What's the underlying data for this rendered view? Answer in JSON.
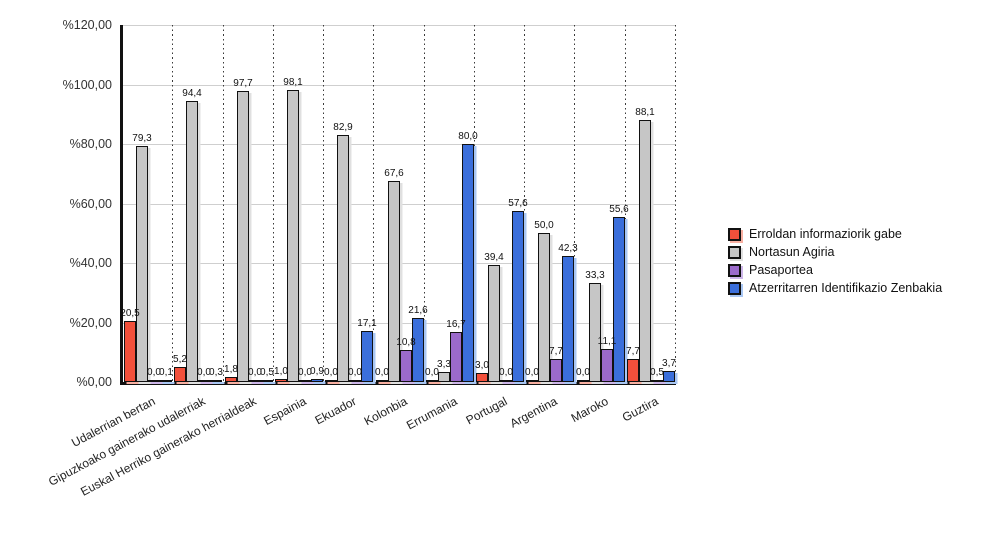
{
  "chart_data": {
    "type": "bar",
    "title": "",
    "categories": [
      "Udalerrian bertan",
      "Gipuzkoako gainerako udalerriak",
      "Euskal Herriko gainerako herrialdeak",
      "Espainia",
      "Ekuador",
      "Kolonbia",
      "Errumania",
      "Portugal",
      "Argentina",
      "Maroko",
      "Guztira"
    ],
    "series": [
      {
        "name": "Erroldan informaziorik gabe",
        "color": "#F2503B",
        "shadow_color": "#F8B0A2",
        "values": [
          20.5,
          5.2,
          1.8,
          1.0,
          0.0,
          0.0,
          0.0,
          3.0,
          0.0,
          0.0,
          7.7
        ],
        "labels": [
          "20,5",
          "5,2",
          "1,8",
          "1,0",
          "0,0",
          "0,0",
          "0,0",
          "3,0",
          "0,0",
          "0,0",
          "7,7"
        ]
      },
      {
        "name": "Nortasun Agiria",
        "color": "#C6C6C6",
        "shadow_color": "#E0E0E0",
        "values": [
          79.3,
          94.4,
          97.7,
          98.1,
          82.9,
          67.6,
          3.3,
          39.4,
          50.0,
          33.3,
          88.1
        ],
        "labels": [
          "79,3",
          "94,4",
          "97,7",
          "98,1",
          "82,9",
          "67,6",
          "3,3",
          "39,4",
          "50,0",
          "33,3",
          "88,1"
        ]
      },
      {
        "name": "Pasaportea",
        "color": "#9B6ACB",
        "shadow_color": "#CDB6E9",
        "values": [
          0.0,
          0.0,
          0.0,
          0.0,
          0.0,
          10.8,
          16.7,
          0.0,
          7.7,
          11.1,
          0.5
        ],
        "labels": [
          "0,0",
          "0,0",
          "0,0",
          "0,0",
          "0,0",
          "10,8",
          "16,7",
          "0,0",
          "7,7",
          "11,1",
          "0,5"
        ]
      },
      {
        "name": "Atzerritarren Identifikazio Zenbakia",
        "color": "#3B6FDB",
        "shadow_color": "#A9C7F4",
        "values": [
          0.1,
          0.3,
          0.5,
          0.9,
          17.1,
          21.6,
          80.0,
          57.6,
          42.3,
          55.6,
          3.7
        ],
        "labels": [
          "0,1",
          "0,3",
          "0,5",
          "0,9",
          "17,1",
          "21,6",
          "80,0",
          "57,6",
          "42,3",
          "55,6",
          "3,7"
        ]
      }
    ],
    "y_axis": {
      "ticks": [
        "%0,00",
        "%20,00",
        "%40,00",
        "%60,00",
        "%80,00",
        "%100,00",
        "%120,00"
      ],
      "min": 0,
      "max": 120,
      "step": 20
    },
    "grid": true,
    "legend_position": "right"
  }
}
